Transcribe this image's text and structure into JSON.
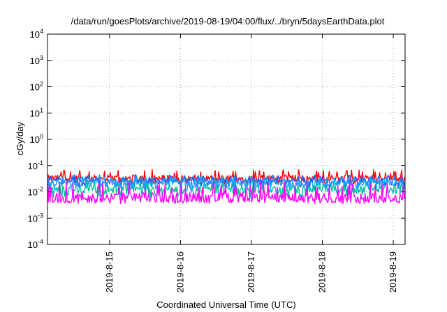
{
  "chart_data": {
    "type": "line",
    "title": "/data/run/goesPlots/archive/2019-08-19/04:00/flux/../bryn/5daysEarthData.plot",
    "xlabel": "Coordinated Universal Time (UTC)",
    "ylabel": "cGy/day",
    "y_scale": "log",
    "ylim": [
      0.0001,
      10000
    ],
    "y_ticks": [
      {
        "base": "10",
        "exp": "-4",
        "value": 0.0001
      },
      {
        "base": "10",
        "exp": "-3",
        "value": 0.001
      },
      {
        "base": "10",
        "exp": "-2",
        "value": 0.01
      },
      {
        "base": "10",
        "exp": "-1",
        "value": 0.1
      },
      {
        "base": "10",
        "exp": "0",
        "value": 1
      },
      {
        "base": "10",
        "exp": "1",
        "value": 10
      },
      {
        "base": "10",
        "exp": "2",
        "value": 100
      },
      {
        "base": "10",
        "exp": "3",
        "value": 1000
      },
      {
        "base": "10",
        "exp": "4",
        "value": 10000
      }
    ],
    "xlim": [
      "2019-08-14 03:00",
      "2019-08-19 04:00"
    ],
    "x_ticks": [
      {
        "label": "2019-8-15",
        "value": "2019-08-15 00:00"
      },
      {
        "label": "2019-8-16",
        "value": "2019-08-16 00:00"
      },
      {
        "label": "2019-8-17",
        "value": "2019-08-17 00:00"
      },
      {
        "label": "2019-8-18",
        "value": "2019-08-18 00:00"
      },
      {
        "label": "2019-8-19",
        "value": "2019-08-19 00:00"
      }
    ],
    "grid": true,
    "series": [
      {
        "color": "#ff0000",
        "center": 0.033,
        "low": 0.02,
        "high": 0.07
      },
      {
        "color": "#00c0a0",
        "center": 0.012,
        "low": 0.006,
        "high": 0.03
      },
      {
        "color": "#1a60ff",
        "center": 0.026,
        "low": 0.015,
        "high": 0.045
      },
      {
        "color": "#20a0ff",
        "center": 0.022,
        "low": 0.013,
        "high": 0.04
      },
      {
        "color": "#ff00ff",
        "center": 0.006,
        "low": 0.0035,
        "high": 0.025
      }
    ]
  }
}
